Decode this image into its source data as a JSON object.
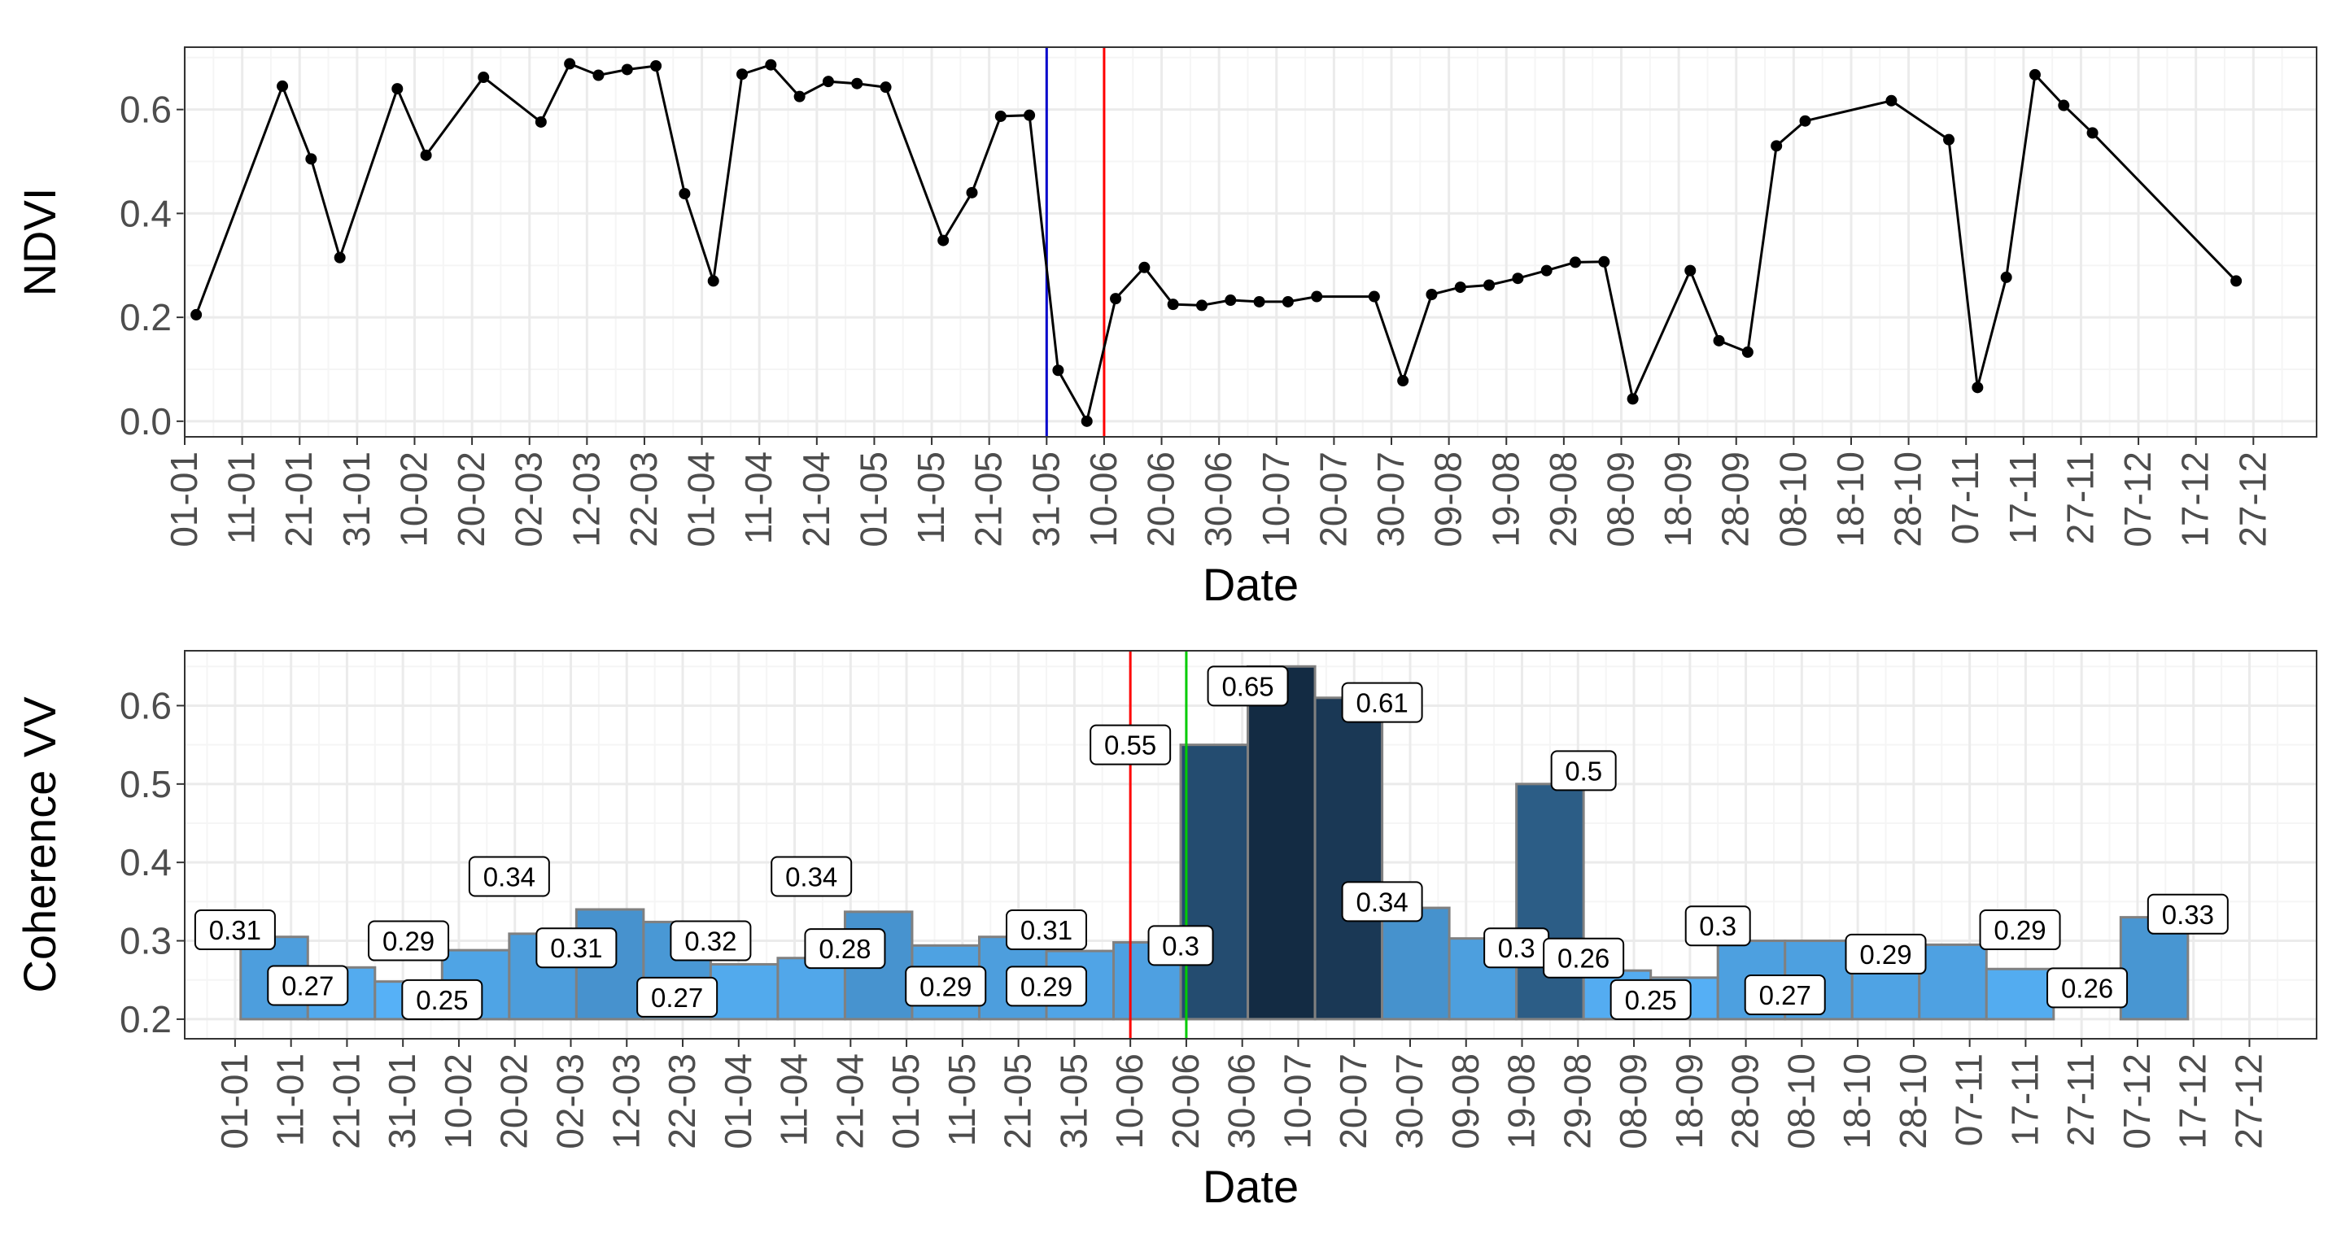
{
  "chart_data": [
    {
      "type": "line",
      "xlabel": "Date",
      "ylabel": "NDVI",
      "xlim": [
        0,
        371
      ],
      "ylim": [
        -0.03,
        0.72
      ],
      "yticks": [
        "0.0",
        "0.2",
        "0.4",
        "0.6"
      ],
      "xtick_labels": [
        "01-01",
        "11-01",
        "21-01",
        "31-01",
        "10-02",
        "20-02",
        "02-03",
        "12-03",
        "22-03",
        "01-04",
        "11-04",
        "21-04",
        "01-05",
        "11-05",
        "21-05",
        "31-05",
        "10-06",
        "20-06",
        "30-06",
        "10-07",
        "20-07",
        "30-07",
        "09-08",
        "19-08",
        "29-08",
        "08-09",
        "18-09",
        "28-09",
        "08-10",
        "18-10",
        "28-10",
        "07-11",
        "17-11",
        "27-11",
        "07-12",
        "17-12",
        "27-12"
      ],
      "grid": true,
      "vlines": [
        {
          "x": 150,
          "color": "#0000cc"
        },
        {
          "x": 160,
          "color": "#ff0000"
        }
      ],
      "series": [
        {
          "color": "#000000",
          "x": [
            2,
            17,
            22,
            27,
            37,
            42,
            52,
            62,
            67,
            72,
            77,
            82,
            87,
            92,
            97,
            102,
            107,
            112,
            117,
            122,
            132,
            137,
            142,
            147,
            152,
            157,
            162,
            167,
            172,
            177,
            182,
            187,
            192,
            197,
            207,
            212,
            217,
            222,
            227,
            232,
            237,
            242,
            247,
            252,
            262,
            267,
            272,
            277,
            282,
            297,
            307,
            312,
            317,
            322,
            327,
            332,
            357
          ],
          "y": [
            0.205,
            0.645,
            0.505,
            0.315,
            0.64,
            0.512,
            0.662,
            0.576,
            0.688,
            0.666,
            0.677,
            0.684,
            0.438,
            0.27,
            0.668,
            0.686,
            0.625,
            0.654,
            0.65,
            0.643,
            0.348,
            0.44,
            0.587,
            0.589,
            0.098,
            0.0,
            0.236,
            0.296,
            0.225,
            0.223,
            0.233,
            0.23,
            0.23,
            0.24,
            0.24,
            0.078,
            0.244,
            0.258,
            0.262,
            0.275,
            0.29,
            0.306,
            0.307,
            0.043,
            0.29,
            0.155,
            0.133,
            0.53,
            0.578,
            0.617,
            0.542,
            0.065,
            0.277,
            0.667,
            0.608,
            0.555,
            0.27
          ]
        }
      ]
    },
    {
      "type": "bar",
      "xlabel": "Date",
      "ylabel": "Coherence VV",
      "xlim": [
        -9,
        372
      ],
      "ylim": [
        0.175,
        0.67
      ],
      "yticks": [
        "0.2",
        "0.3",
        "0.4",
        "0.5",
        "0.6"
      ],
      "xtick_labels": [
        "01-01",
        "11-01",
        "21-01",
        "31-01",
        "10-02",
        "20-02",
        "02-03",
        "12-03",
        "22-03",
        "01-04",
        "11-04",
        "21-04",
        "01-05",
        "11-05",
        "21-05",
        "31-05",
        "10-06",
        "20-06",
        "30-06",
        "10-07",
        "20-07",
        "30-07",
        "09-08",
        "19-08",
        "29-08",
        "08-09",
        "18-09",
        "28-09",
        "08-10",
        "18-10",
        "28-10",
        "07-11",
        "17-11",
        "27-11",
        "07-12",
        "17-12",
        "27-12"
      ],
      "grid": true,
      "bar_width_days": 12,
      "vlines": [
        {
          "x": 160,
          "color": "#ff0000"
        },
        {
          "x": 170,
          "color": "#00cc00"
        }
      ],
      "bars": [
        {
          "x": 7,
          "value": 0.305
        },
        {
          "x": 19,
          "value": 0.266
        },
        {
          "x": 31,
          "value": 0.248
        },
        {
          "x": 43,
          "value": 0.288
        },
        {
          "x": 55,
          "value": 0.309
        },
        {
          "x": 67,
          "value": 0.34
        },
        {
          "x": 79,
          "value": 0.324
        },
        {
          "x": 91,
          "value": 0.27
        },
        {
          "x": 103,
          "value": 0.278
        },
        {
          "x": 115,
          "value": 0.337
        },
        {
          "x": 127,
          "value": 0.294
        },
        {
          "x": 139,
          "value": 0.305
        },
        {
          "x": 151,
          "value": 0.287
        },
        {
          "x": 163,
          "value": 0.298
        },
        {
          "x": 175,
          "value": 0.55
        },
        {
          "x": 187,
          "value": 0.65
        },
        {
          "x": 199,
          "value": 0.61
        },
        {
          "x": 211,
          "value": 0.342
        },
        {
          "x": 223,
          "value": 0.303
        },
        {
          "x": 235,
          "value": 0.5
        },
        {
          "x": 247,
          "value": 0.262
        },
        {
          "x": 259,
          "value": 0.253
        },
        {
          "x": 271,
          "value": 0.3
        },
        {
          "x": 283,
          "value": 0.3
        },
        {
          "x": 295,
          "value": 0.29
        },
        {
          "x": 307,
          "value": 0.295
        },
        {
          "x": 319,
          "value": 0.264
        },
        {
          "x": 343,
          "value": 0.33
        }
      ],
      "labels": [
        {
          "text": "0.31",
          "x": 0,
          "y": 0.314
        },
        {
          "text": "0.27",
          "x": 13,
          "y": 0.243
        },
        {
          "text": "0.29",
          "x": 31,
          "y": 0.3
        },
        {
          "text": "0.25",
          "x": 37,
          "y": 0.225
        },
        {
          "text": "0.34",
          "x": 49,
          "y": 0.382
        },
        {
          "text": "0.31",
          "x": 61,
          "y": 0.291
        },
        {
          "text": "0.32",
          "x": 85,
          "y": 0.3
        },
        {
          "text": "0.27",
          "x": 79,
          "y": 0.228
        },
        {
          "text": "0.34",
          "x": 103,
          "y": 0.382
        },
        {
          "text": "0.28",
          "x": 109,
          "y": 0.29
        },
        {
          "text": "0.29",
          "x": 127,
          "y": 0.242
        },
        {
          "text": "0.31",
          "x": 145,
          "y": 0.314
        },
        {
          "text": "0.29",
          "x": 145,
          "y": 0.242
        },
        {
          "text": "0.55",
          "x": 160,
          "y": 0.55
        },
        {
          "text": "0.3",
          "x": 169,
          "y": 0.294
        },
        {
          "text": "0.65",
          "x": 181,
          "y": 0.625
        },
        {
          "text": "0.61",
          "x": 205,
          "y": 0.604
        },
        {
          "text": "0.34",
          "x": 205,
          "y": 0.35
        },
        {
          "text": "0.3",
          "x": 229,
          "y": 0.291
        },
        {
          "text": "0.26",
          "x": 241,
          "y": 0.278
        },
        {
          "text": "0.5",
          "x": 241,
          "y": 0.517
        },
        {
          "text": "0.25",
          "x": 253,
          "y": 0.225
        },
        {
          "text": "0.3",
          "x": 265,
          "y": 0.319
        },
        {
          "text": "0.27",
          "x": 277,
          "y": 0.231
        },
        {
          "text": "0.29",
          "x": 295,
          "y": 0.283
        },
        {
          "text": "0.29",
          "x": 319,
          "y": 0.314
        },
        {
          "text": "0.26",
          "x": 331,
          "y": 0.24
        },
        {
          "text": "0.33",
          "x": 349,
          "y": 0.334
        }
      ]
    }
  ],
  "colors": {
    "panel_border": "#333333",
    "grid_major": "#ebebeb",
    "grid_minor": "#f5f5f5",
    "tick_text": "#4d4d4d",
    "bar_outline": "#808080",
    "bar_low": "#56b1f7",
    "bar_high": "#132b43",
    "line": "#000000"
  }
}
